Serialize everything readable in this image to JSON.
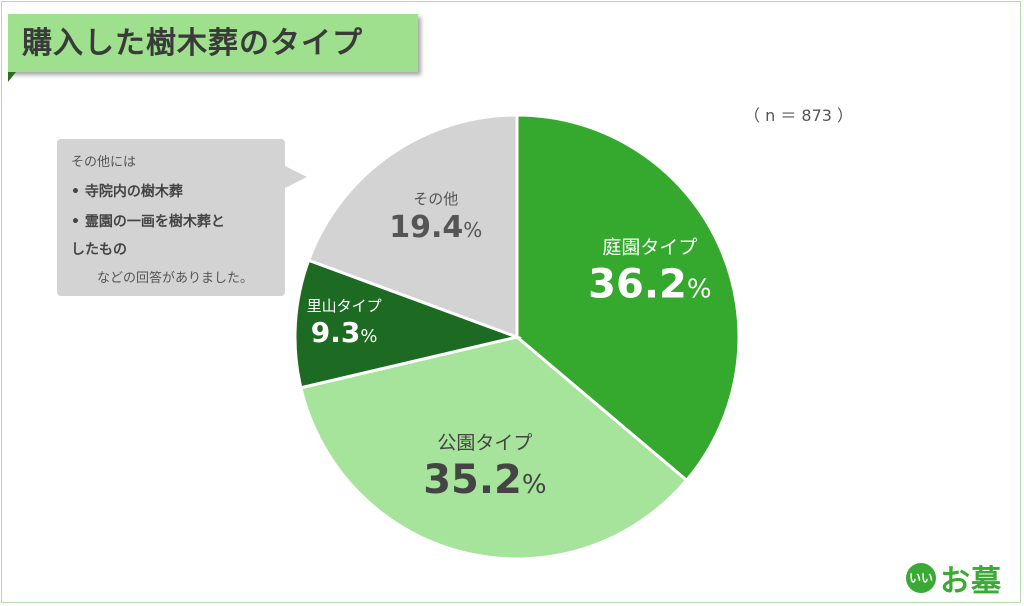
{
  "title": "購入した樹木葬のタイプ",
  "sample_size": "（ n ＝ 873 ）",
  "chart_data": {
    "type": "pie",
    "title": "購入した樹木葬のタイプ",
    "categories": [
      "庭園タイプ",
      "公園タイプ",
      "里山タイプ",
      "その他"
    ],
    "values": [
      36.2,
      35.2,
      9.3,
      19.4
    ],
    "value_labels": [
      "36.2",
      "35.2",
      "9.3",
      "19.4"
    ],
    "unit": "%",
    "colors": [
      "#35a82e",
      "#a6e39b",
      "#1d6b22",
      "#d3d3d3"
    ],
    "label_colors": [
      "#ffffff",
      "#444444",
      "#ffffff",
      "#555555"
    ],
    "start_angle_deg": 0,
    "direction": "clockwise"
  },
  "callout": {
    "heading": "その他には",
    "items": [
      "•  寺院内の樹木葬",
      "•  霊園の一画を樹木葬と",
      "    したもの"
    ],
    "footer": "などの回答がありました。"
  },
  "logo": {
    "badge": "いい",
    "text": "お墓"
  }
}
